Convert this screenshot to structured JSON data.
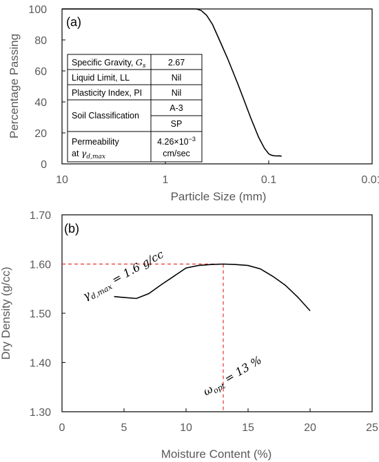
{
  "chart_data": [
    {
      "type": "line",
      "panel_label": "(a)",
      "xlabel": "Particle Size (mm)",
      "ylabel": "Percentage Passing",
      "x_scale": "log",
      "x_reversed": true,
      "xlim": [
        10,
        0.01
      ],
      "ylim": [
        0,
        100
      ],
      "x_ticks": [
        10,
        1,
        0.1,
        0.01
      ],
      "x_tick_labels": [
        "10",
        "1",
        "0.1",
        "0.01"
      ],
      "y_ticks": [
        0,
        20,
        40,
        60,
        80,
        100
      ],
      "y_tick_labels": [
        "0",
        "20",
        "40",
        "60",
        "80",
        "100"
      ],
      "grid": false,
      "line_color": "#000000",
      "series": [
        {
          "x": [
            10,
            2,
            0.5,
            0.45,
            0.4,
            0.35,
            0.3,
            0.25,
            0.2,
            0.18,
            0.15,
            0.125,
            0.11,
            0.1,
            0.095,
            0.09,
            0.085,
            0.08,
            0.075
          ],
          "y": [
            100,
            100,
            100,
            99,
            96,
            90,
            80,
            68,
            52,
            44,
            30,
            17,
            10,
            6.5,
            5.7,
            5.3,
            5.1,
            5.2,
            5.0
          ]
        }
      ],
      "table": [
        {
          "property": "Specific Gravity, ",
          "symbol": "G",
          "subscript": "s",
          "value": "2.67"
        },
        {
          "property": "Liquid Limit, LL",
          "value": "Nil"
        },
        {
          "property": "Plasticity Index, PI",
          "value": "Nil"
        },
        {
          "property": "Soil Classification",
          "values": [
            "A-3",
            "SP"
          ]
        },
        {
          "property_lines": [
            "Permeability",
            "at "
          ],
          "symbol": "γ",
          "subscript": "d,max",
          "value_lines": [
            "4.26×10",
            "cm/sec"
          ],
          "exponent": "−3"
        }
      ]
    },
    {
      "type": "line",
      "panel_label": "(b)",
      "xlabel": "Moisture Content (%)",
      "ylabel": "Dry Density (g/cc)",
      "xlim": [
        0,
        25
      ],
      "ylim": [
        1.3,
        1.7
      ],
      "x_ticks": [
        0,
        5,
        10,
        15,
        20,
        25
      ],
      "x_tick_labels": [
        "0",
        "5",
        "10",
        "15",
        "20",
        "25"
      ],
      "y_ticks": [
        1.3,
        1.4,
        1.5,
        1.6,
        1.7
      ],
      "y_tick_labels": [
        "1.30",
        "1.40",
        "1.50",
        "1.60",
        "1.70"
      ],
      "grid": false,
      "line_color": "#000000",
      "reference_color": "#e8312a",
      "series": [
        {
          "x": [
            4.2,
            5,
            6,
            7,
            8,
            9,
            10,
            11,
            12,
            13,
            14,
            15,
            16,
            17,
            18,
            19,
            20
          ],
          "y": [
            1.534,
            1.532,
            1.53,
            1.54,
            1.558,
            1.575,
            1.592,
            1.597,
            1.599,
            1.6,
            1.599,
            1.597,
            1.59,
            1.575,
            1.557,
            1.533,
            1.505
          ]
        }
      ],
      "reference": {
        "x": 13,
        "y": 1.6
      },
      "annotations": [
        {
          "symbol": "γ",
          "subscript": "d,max",
          "text": " = 1.6 g/cc"
        },
        {
          "symbol": "ω",
          "subscript": "opt",
          "text": " = 13 %"
        }
      ]
    }
  ]
}
